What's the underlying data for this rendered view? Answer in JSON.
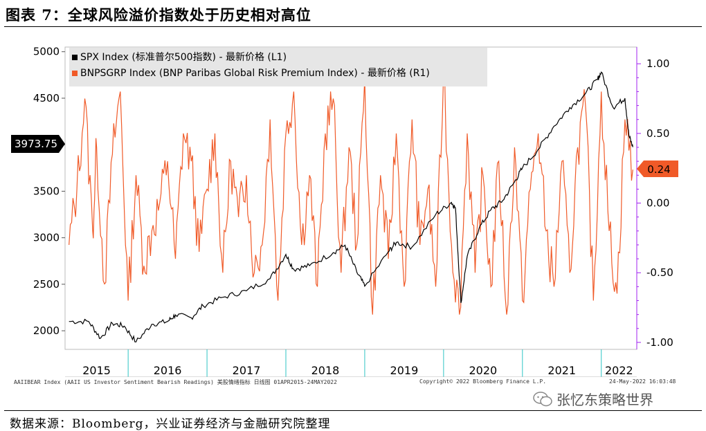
{
  "figure_title": "图表 7：全球风险溢价指数处于历史相对高位",
  "source_note": "数据来源：Bloomberg，兴业证券经济与金融研究院整理",
  "footer": {
    "left": "AAIIBEAR Index (AAII US Investor Sentiment Bearish Readings) 美股情绪指标   日线图 01APR2015-24MAY2022",
    "center": "Copyright© 2022 Bloomberg Finance L.P.",
    "right": "24-May-2022 16:03:48"
  },
  "watermark": {
    "text": "张忆东策略世界",
    "icon": "wechat-icon"
  },
  "colors": {
    "spx": "#000000",
    "bnp": "#f05a28",
    "right_axis": "#a020f0",
    "grid": "#2ec4c4"
  },
  "chart_data": {
    "type": "line",
    "x_labels": [
      "2015",
      "2016",
      "2017",
      "2018",
      "2019",
      "2020",
      "2021",
      "2022"
    ],
    "left_axis": {
      "ticks": [
        2000,
        2500,
        3000,
        3500,
        4000,
        4500,
        5000
      ],
      "range": [
        1800,
        5050
      ]
    },
    "right_axis": {
      "ticks": [
        "1.00",
        "0.50",
        "0.00",
        "-0.50",
        "-1.00"
      ],
      "tick_values": [
        1.0,
        0.5,
        0.0,
        -0.5,
        -1.0
      ],
      "range": [
        -1.05,
        1.12
      ]
    },
    "legend": [
      {
        "label": "SPX Index (标准普尔500指数) - 最新价格 (L1)",
        "color": "#000000"
      },
      {
        "label": "BNPSGRP Index (BNP Paribas Global Risk Premium Index) - 最新价格 (R1)",
        "color": "#f05a28"
      }
    ],
    "last_values": {
      "spx": "3973.75",
      "bnp": "0.24"
    },
    "series": [
      {
        "name": "SPX Index (标准普尔500指数) - 最新价格 (L1)",
        "axis": "left",
        "x": [
          2015.25,
          2015.5,
          2015.65,
          2015.8,
          2015.95,
          2016.1,
          2016.3,
          2016.5,
          2016.6,
          2016.8,
          2016.95,
          2017.2,
          2017.5,
          2017.8,
          2018.0,
          2018.1,
          2018.3,
          2018.6,
          2018.75,
          2018.9,
          2019.0,
          2019.3,
          2019.4,
          2019.6,
          2019.9,
          2020.1,
          2020.15,
          2020.22,
          2020.3,
          2020.45,
          2020.6,
          2020.75,
          2020.9,
          2021.0,
          2021.2,
          2021.4,
          2021.6,
          2021.8,
          2021.95,
          2022.0,
          2022.15,
          2022.3,
          2022.35,
          2022.4
        ],
        "values": [
          2100,
          2100,
          1920,
          2080,
          2050,
          1880,
          2070,
          2100,
          2170,
          2140,
          2270,
          2360,
          2430,
          2560,
          2820,
          2660,
          2700,
          2840,
          2920,
          2630,
          2480,
          2850,
          2950,
          2900,
          3250,
          3380,
          3320,
          2300,
          2800,
          3100,
          3300,
          3400,
          3600,
          3750,
          3950,
          4200,
          4400,
          4550,
          4700,
          4780,
          4400,
          4500,
          4100,
          3973.75
        ]
      },
      {
        "name": "BNPSGRP Index (BNP Paribas Global Risk Premium Index) - 最新价格 (R1)",
        "axis": "right",
        "x": [
          2015.25,
          2015.35,
          2015.45,
          2015.55,
          2015.6,
          2015.7,
          2015.8,
          2015.9,
          2016.0,
          2016.1,
          2016.2,
          2016.3,
          2016.4,
          2016.5,
          2016.6,
          2016.7,
          2016.8,
          2016.9,
          2017.0,
          2017.1,
          2017.2,
          2017.3,
          2017.4,
          2017.5,
          2017.6,
          2017.7,
          2017.8,
          2017.9,
          2018.0,
          2018.1,
          2018.2,
          2018.3,
          2018.4,
          2018.5,
          2018.6,
          2018.7,
          2018.8,
          2018.9,
          2019.0,
          2019.1,
          2019.2,
          2019.3,
          2019.4,
          2019.5,
          2019.6,
          2019.7,
          2019.8,
          2019.9,
          2020.0,
          2020.1,
          2020.2,
          2020.3,
          2020.4,
          2020.5,
          2020.6,
          2020.7,
          2020.8,
          2020.9,
          2021.0,
          2021.1,
          2021.2,
          2021.3,
          2021.4,
          2021.5,
          2021.6,
          2021.7,
          2021.8,
          2021.9,
          2022.0,
          2022.1,
          2022.2,
          2022.3,
          2022.4
        ],
        "values": [
          -0.3,
          0.1,
          0.75,
          -0.2,
          0.4,
          -0.58,
          0.35,
          0.8,
          -0.7,
          0.2,
          -0.45,
          -0.2,
          0.0,
          0.3,
          -0.4,
          0.5,
          0.3,
          -0.35,
          0.1,
          0.5,
          -0.5,
          0.3,
          -0.1,
          0.2,
          -0.5,
          -0.3,
          0.6,
          -0.7,
          0.5,
          0.8,
          -0.3,
          0.2,
          -0.6,
          0.5,
          0.75,
          -0.5,
          0.4,
          -0.3,
          0.9,
          -0.8,
          0.2,
          -0.4,
          0.5,
          -0.6,
          0.6,
          -0.3,
          0.1,
          -0.6,
          0.95,
          -0.3,
          -0.8,
          0.5,
          -0.5,
          0.2,
          -0.6,
          0.3,
          -0.8,
          0.4,
          -0.7,
          0.1,
          0.5,
          -0.2,
          -0.6,
          0.3,
          -0.5,
          0.4,
          0.7,
          -0.7,
          0.8,
          -0.2,
          -0.65,
          0.6,
          0.24
        ]
      }
    ]
  }
}
